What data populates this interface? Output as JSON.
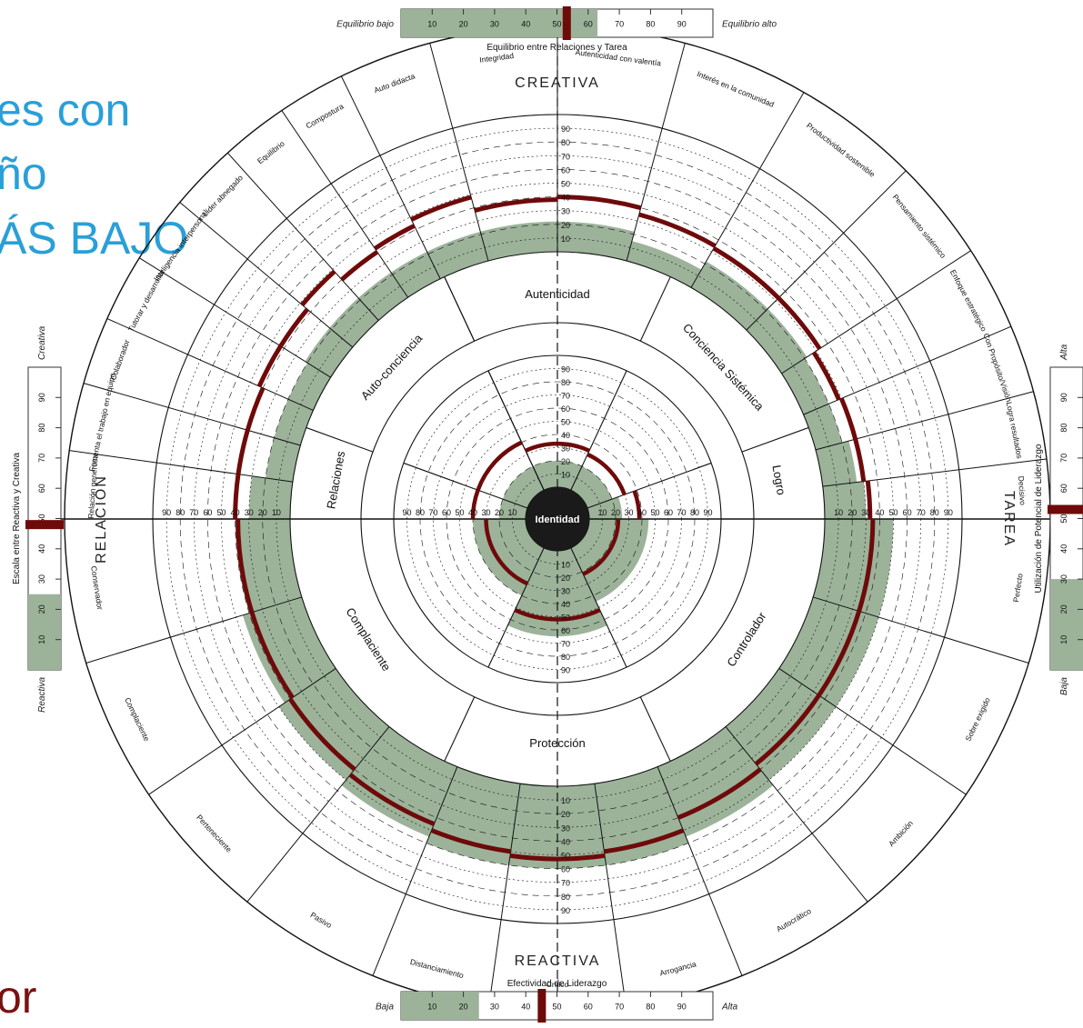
{
  "slide": {
    "lines": [
      "es con",
      "ño",
      "ÁS BAJO"
    ],
    "bottom": "or",
    "colors": {
      "blue": "#2a9fd8",
      "red": "#7a1111"
    }
  },
  "colors": {
    "band": "#9cb39a",
    "marker": "#6e0a0a",
    "line": "#111111"
  },
  "top_scale": {
    "left": "Equilibrio bajo",
    "right": "Equilibrio alto",
    "title": "Equilibrio entre Relaciones y Tarea",
    "ticks": [
      "10",
      "20",
      "30",
      "40",
      "50",
      "60",
      "70",
      "80",
      "90"
    ],
    "fill_percent": 63,
    "marker_percent": 53
  },
  "bottom_scale": {
    "title": "Efectividad de Liderazgo",
    "left": "Baja",
    "right": "Alta",
    "ticks": [
      "10",
      "20",
      "30",
      "40",
      "50",
      "60",
      "70",
      "80",
      "90"
    ],
    "fill_percent": 25,
    "marker_percent": 45
  },
  "left_scale": {
    "top": "Creativa",
    "bottom": "Reactiva",
    "title": "Escala entre Reactiva y Creativa",
    "ticks": [
      "10",
      "20",
      "30",
      "40",
      "50",
      "60",
      "70",
      "80",
      "90"
    ],
    "fill_percent": 25,
    "marker_percent": 48
  },
  "right_scale": {
    "top": "Alta",
    "bottom": "Baja",
    "title": "Utilización de Potencial de Liderazgo",
    "ticks": [
      "10",
      "20",
      "30",
      "40",
      "50",
      "60",
      "70",
      "80",
      "90"
    ],
    "fill_percent": 30,
    "marker_percent": 53
  },
  "axis_labels": {
    "top": "CREATIVA",
    "bottom": "REACTIVA",
    "left": "RELACIÓN",
    "right": "TAREA"
  },
  "center_label": "Identidad",
  "scale_numbers": [
    "10",
    "20",
    "30",
    "40",
    "50",
    "60",
    "70",
    "80",
    "90"
  ],
  "chart_data": {
    "type": "circle-profile",
    "summary_dimensions": [
      {
        "name": "Autenticidad",
        "band_percentile": 20,
        "score_percentile": 33
      },
      {
        "name": "Conciencia Sistémica",
        "band_percentile": 20,
        "score_percentile": 30
      },
      {
        "name": "Logro",
        "band_percentile": 25,
        "score_percentile": 38
      },
      {
        "name": "Controlador",
        "band_percentile": 45,
        "score_percentile": 22
      },
      {
        "name": "Protección",
        "band_percentile": 65,
        "score_percentile": 52
      },
      {
        "name": "Complaciente",
        "band_percentile": 40,
        "score_percentile": 30
      },
      {
        "name": "Relaciones",
        "band_percentile": 20,
        "score_percentile": 40
      },
      {
        "name": "Auto-conciencia",
        "band_percentile": 20,
        "score_percentile": 40
      }
    ],
    "creative_dimensions": [
      {
        "name": "Integridad",
        "band_percentile": 22,
        "score_percentile": 38
      },
      {
        "name": "Autenticidad con valentía",
        "band_percentile": 22,
        "score_percentile": 40
      },
      {
        "name": "Interés en la comunidad",
        "band_percentile": 15,
        "score_percentile": 35
      },
      {
        "name": "Productividad sostenible",
        "band_percentile": 22,
        "score_percentile": 33
      },
      {
        "name": "Pensamiento sistémico",
        "band_percentile": 22,
        "score_percentile": 33
      },
      {
        "name": "Enfoque estratégico",
        "band_percentile": 20,
        "score_percentile": 28
      },
      {
        "name": "Con Propósito/Visión",
        "band_percentile": 20,
        "score_percentile": 30
      },
      {
        "name": "Logra resultados",
        "band_percentile": 25,
        "score_percentile": 30
      },
      {
        "name": "Decisivo",
        "band_percentile": 30,
        "score_percentile": 33
      },
      {
        "name": "Relación generosa",
        "band_percentile": 30,
        "score_percentile": 40
      },
      {
        "name": "Fomenta el trabajo en equipo",
        "band_percentile": 20,
        "score_percentile": 40
      },
      {
        "name": "Colaborador",
        "band_percentile": 20,
        "score_percentile": 40
      },
      {
        "name": "Tutorar y desarrollar",
        "band_percentile": 20,
        "score_percentile": 43
      },
      {
        "name": "Inteligencia interpersonal",
        "band_percentile": 22,
        "score_percentile": 43
      },
      {
        "name": "Líder abnegado",
        "band_percentile": 22,
        "score_percentile": 48
      },
      {
        "name": "Equilibrio",
        "band_percentile": 22,
        "score_percentile": 40
      },
      {
        "name": "Compostura",
        "band_percentile": 22,
        "score_percentile": 43
      },
      {
        "name": "Auto didacta",
        "band_percentile": 22,
        "score_percentile": 48
      }
    ],
    "reactive_dimensions": [
      {
        "name": "Perfecto",
        "band_percentile": 50,
        "score_percentile": 35
      },
      {
        "name": "Sobre exigido",
        "band_percentile": 50,
        "score_percentile": 35
      },
      {
        "name": "Ambición",
        "band_percentile": 50,
        "score_percentile": 35
      },
      {
        "name": "Autocrático",
        "band_percentile": 55,
        "score_percentile": 40
      },
      {
        "name": "Arrogancia",
        "band_percentile": 60,
        "score_percentile": 50
      },
      {
        "name": "Crítico",
        "band_percentile": 60,
        "score_percentile": 53
      },
      {
        "name": "Distanciamiento",
        "band_percentile": 60,
        "score_percentile": 50
      },
      {
        "name": "Pasivo",
        "band_percentile": 55,
        "score_percentile": 45
      },
      {
        "name": "Perteneciente",
        "band_percentile": 50,
        "score_percentile": 40
      },
      {
        "name": "Complaciente",
        "band_percentile": 45,
        "score_percentile": 38
      },
      {
        "name": "Conservador",
        "band_percentile": 40,
        "score_percentile": 38
      }
    ]
  }
}
